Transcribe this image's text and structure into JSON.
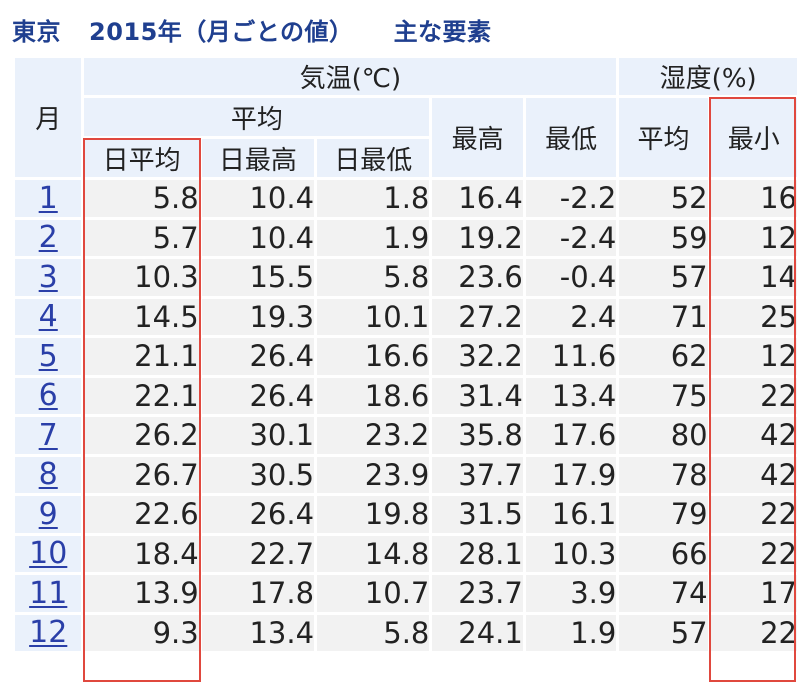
{
  "title": {
    "location": "東京",
    "period": "2015年（月ごとの値）",
    "subtitle": "主な要素"
  },
  "headers": {
    "month": "月",
    "temperature": "気温(℃)",
    "humidity": "湿度(%)",
    "average": "平均",
    "daily_mean": "日平均",
    "daily_max": "日最高",
    "daily_min": "日最低",
    "max": "最高",
    "min": "最低",
    "humidity_mean": "平均",
    "humidity_min": "最小"
  },
  "rows": [
    {
      "month": "1",
      "daily_mean": "5.8",
      "daily_max": "10.4",
      "daily_min": "1.8",
      "max": "16.4",
      "min": "-2.2",
      "hum_mean": "52",
      "hum_min": "16"
    },
    {
      "month": "2",
      "daily_mean": "5.7",
      "daily_max": "10.4",
      "daily_min": "1.9",
      "max": "19.2",
      "min": "-2.4",
      "hum_mean": "59",
      "hum_min": "12"
    },
    {
      "month": "3",
      "daily_mean": "10.3",
      "daily_max": "15.5",
      "daily_min": "5.8",
      "max": "23.6",
      "min": "-0.4",
      "hum_mean": "57",
      "hum_min": "14"
    },
    {
      "month": "4",
      "daily_mean": "14.5",
      "daily_max": "19.3",
      "daily_min": "10.1",
      "max": "27.2",
      "min": "2.4",
      "hum_mean": "71",
      "hum_min": "25"
    },
    {
      "month": "5",
      "daily_mean": "21.1",
      "daily_max": "26.4",
      "daily_min": "16.6",
      "max": "32.2",
      "min": "11.6",
      "hum_mean": "62",
      "hum_min": "12"
    },
    {
      "month": "6",
      "daily_mean": "22.1",
      "daily_max": "26.4",
      "daily_min": "18.6",
      "max": "31.4",
      "min": "13.4",
      "hum_mean": "75",
      "hum_min": "22"
    },
    {
      "month": "7",
      "daily_mean": "26.2",
      "daily_max": "30.1",
      "daily_min": "23.2",
      "max": "35.8",
      "min": "17.6",
      "hum_mean": "80",
      "hum_min": "42"
    },
    {
      "month": "8",
      "daily_mean": "26.7",
      "daily_max": "30.5",
      "daily_min": "23.9",
      "max": "37.7",
      "min": "17.9",
      "hum_mean": "78",
      "hum_min": "42"
    },
    {
      "month": "9",
      "daily_mean": "22.6",
      "daily_max": "26.4",
      "daily_min": "19.8",
      "max": "31.5",
      "min": "16.1",
      "hum_mean": "79",
      "hum_min": "22"
    },
    {
      "month": "10",
      "daily_mean": "18.4",
      "daily_max": "22.7",
      "daily_min": "14.8",
      "max": "28.1",
      "min": "10.3",
      "hum_mean": "66",
      "hum_min": "22"
    },
    {
      "month": "11",
      "daily_mean": "13.9",
      "daily_max": "17.8",
      "daily_min": "10.7",
      "max": "23.7",
      "min": "3.9",
      "hum_mean": "74",
      "hum_min": "17"
    },
    {
      "month": "12",
      "daily_mean": "9.3",
      "daily_max": "13.4",
      "daily_min": "5.8",
      "max": "24.1",
      "min": "1.9",
      "hum_mean": "57",
      "hum_min": "22"
    }
  ],
  "colors": {
    "title": "#1f3f8f",
    "header_bg": "#eaf1fb",
    "cell_bg": "#f2f2f2",
    "link": "#2a3fa8",
    "highlight": "#e0483e"
  }
}
